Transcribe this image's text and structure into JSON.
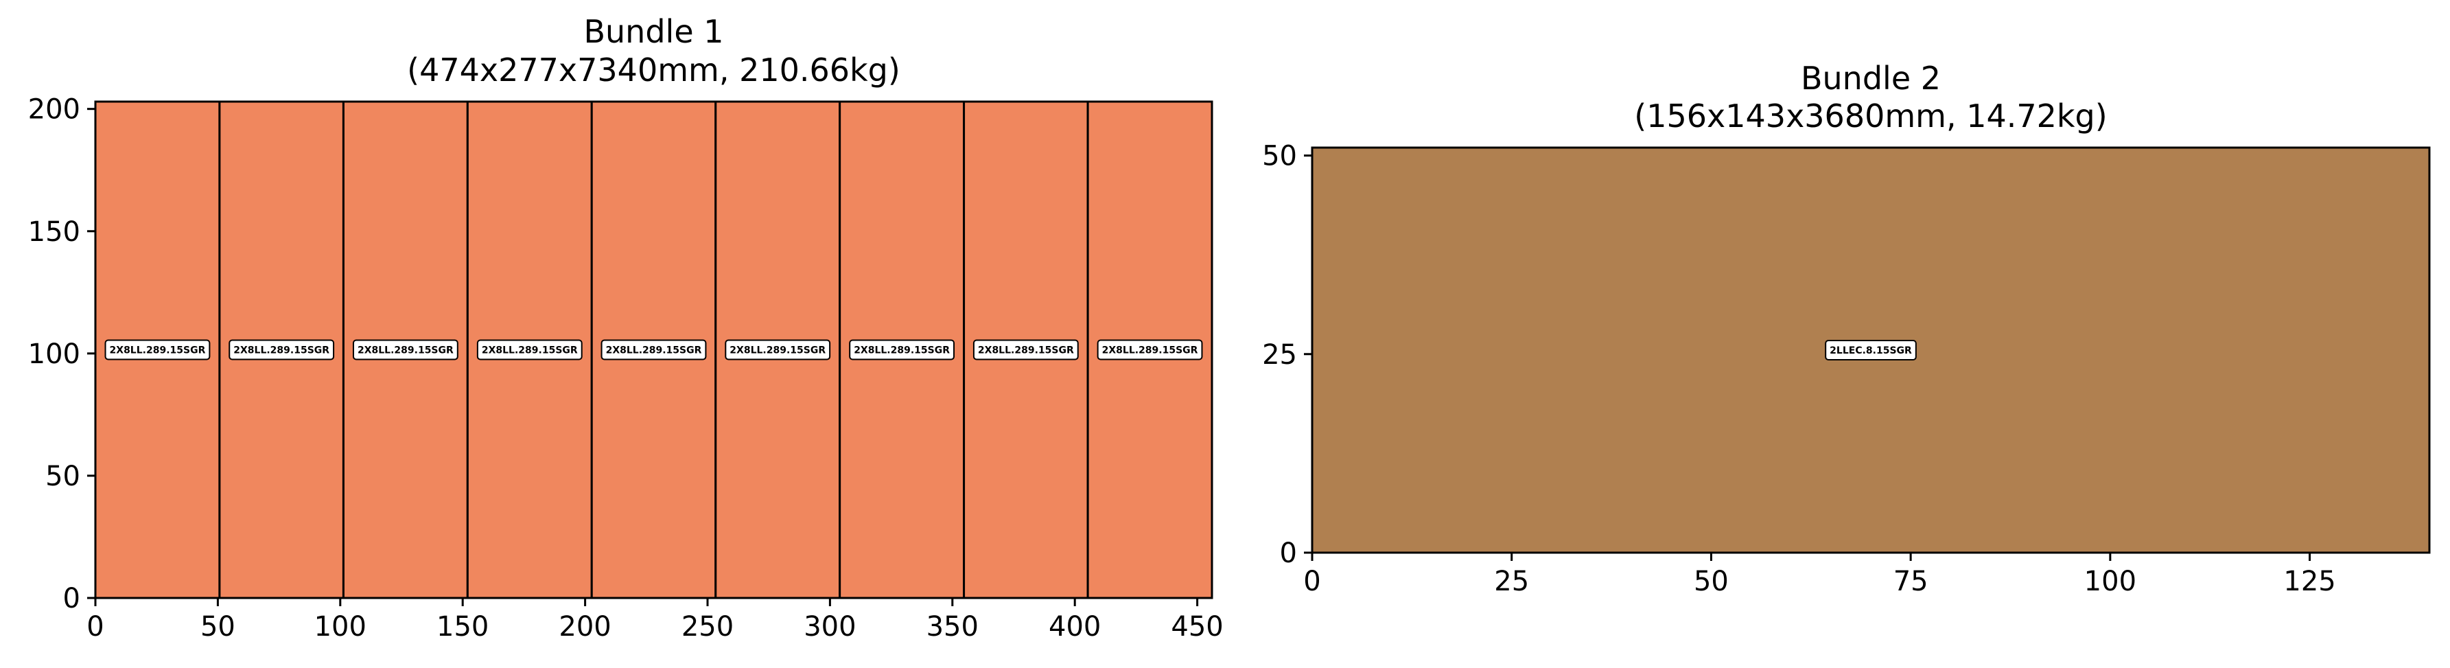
{
  "chart_data": [
    {
      "type": "rectangle-layout",
      "title": "Bundle 1",
      "subtitle": "(474x277x7340mm, 210.66kg)",
      "xlim": [
        0,
        456
      ],
      "ylim": [
        0,
        203
      ],
      "xticks": [
        0,
        50,
        100,
        150,
        200,
        250,
        300,
        350,
        400,
        450
      ],
      "yticks": [
        0,
        50,
        100,
        150,
        200
      ],
      "fill_color": "#f0875e",
      "edge_color": "#000000",
      "label_y": 101.5,
      "items": [
        {
          "label": "2X8LL.289.15SGR",
          "x0": 0,
          "x1": 50.7,
          "y0": 0,
          "y1": 203
        },
        {
          "label": "2X8LL.289.15SGR",
          "x0": 50.7,
          "x1": 101.3,
          "y0": 0,
          "y1": 203
        },
        {
          "label": "2X8LL.289.15SGR",
          "x0": 101.3,
          "x1": 152,
          "y0": 0,
          "y1": 203
        },
        {
          "label": "2X8LL.289.15SGR",
          "x0": 152,
          "x1": 202.7,
          "y0": 0,
          "y1": 203
        },
        {
          "label": "2X8LL.289.15SGR",
          "x0": 202.7,
          "x1": 253.3,
          "y0": 0,
          "y1": 203
        },
        {
          "label": "2X8LL.289.15SGR",
          "x0": 253.3,
          "x1": 304,
          "y0": 0,
          "y1": 203
        },
        {
          "label": "2X8LL.289.15SGR",
          "x0": 304,
          "x1": 354.7,
          "y0": 0,
          "y1": 203
        },
        {
          "label": "2X8LL.289.15SGR",
          "x0": 354.7,
          "x1": 405.3,
          "y0": 0,
          "y1": 203
        },
        {
          "label": "2X8LL.289.15SGR",
          "x0": 405.3,
          "x1": 456,
          "y0": 0,
          "y1": 203
        }
      ]
    },
    {
      "type": "rectangle-layout",
      "title": "Bundle 2",
      "subtitle": "(156x143x3680mm, 14.72kg)",
      "xlim": [
        0,
        140
      ],
      "ylim": [
        0,
        51
      ],
      "xticks": [
        0,
        25,
        50,
        75,
        100,
        125
      ],
      "yticks": [
        0,
        25,
        50
      ],
      "fill_color": "#b08050",
      "edge_color": "#000000",
      "label_y": 25.5,
      "items": [
        {
          "label": "2LLEC.8.15SGR",
          "x0": 0,
          "x1": 140,
          "y0": 0,
          "y1": 51
        }
      ]
    }
  ]
}
